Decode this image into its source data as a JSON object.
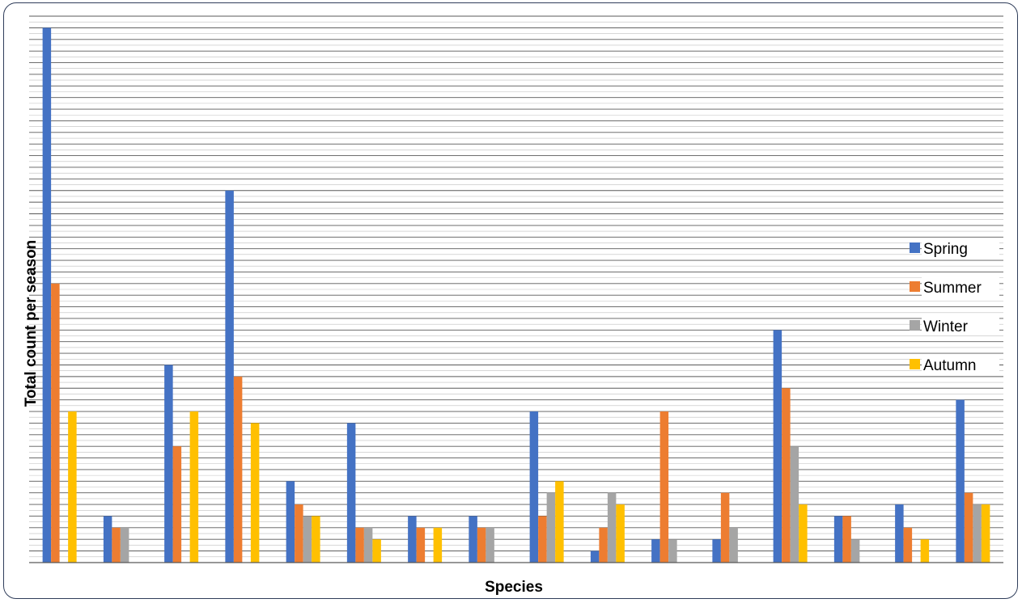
{
  "chart_data": {
    "type": "bar",
    "title": "",
    "xlabel": "Species",
    "ylabel": "Total count per season",
    "ylim": [
      0,
      47
    ],
    "grid": true,
    "legend_position": "right",
    "categories": [
      "",
      "",
      "",
      "",
      "",
      "",
      "",
      "",
      "",
      "",
      "",
      "",
      "",
      "",
      "",
      ""
    ],
    "series": [
      {
        "name": "Spring",
        "color": "#4472C4",
        "values": [
          46,
          4,
          17,
          32,
          7,
          12,
          4,
          4,
          13,
          1,
          2,
          2,
          20,
          4,
          5,
          14
        ]
      },
      {
        "name": "Summer",
        "color": "#ED7D31",
        "values": [
          24,
          3,
          10,
          16,
          5,
          3,
          3,
          3,
          4,
          3,
          13,
          6,
          15,
          4,
          3,
          6
        ]
      },
      {
        "name": "Winter",
        "color": "#A5A5A5",
        "values": [
          0,
          3,
          0,
          0,
          4,
          3,
          0,
          3,
          6,
          6,
          2,
          3,
          10,
          2,
          0,
          5
        ]
      },
      {
        "name": "Autumn",
        "color": "#FFC000",
        "values": [
          13,
          0,
          13,
          12,
          4,
          2,
          3,
          0,
          7,
          5,
          0,
          0,
          5,
          0,
          2,
          5
        ]
      }
    ]
  }
}
